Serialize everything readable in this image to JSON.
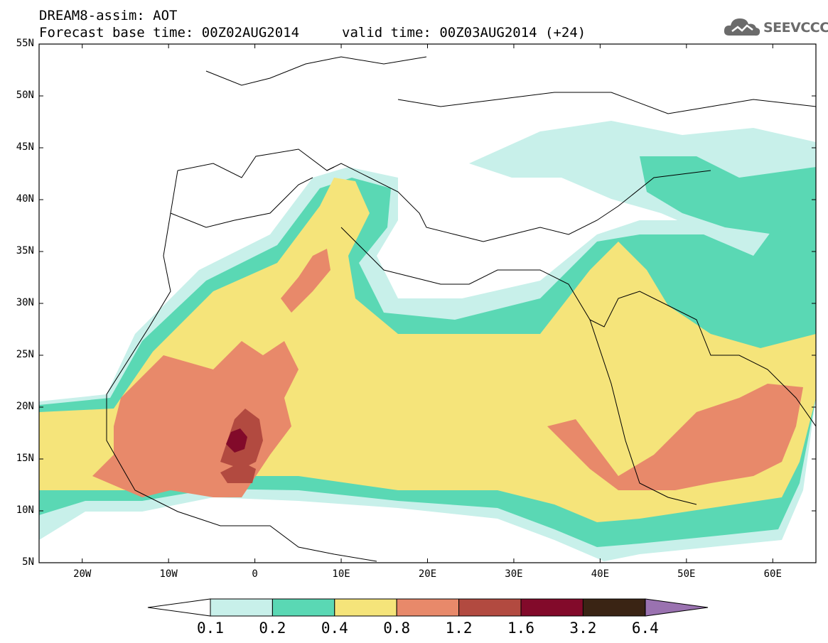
{
  "header": {
    "line1": "DREAM8-assim: AOT",
    "base_time": "Forecast base time: 00Z02AUG2014",
    "valid_time": "valid time: 00Z03AUG2014 (+24)"
  },
  "logo": {
    "text": "SEEVCCC",
    "icon": "cloud-icon",
    "color": "#6b6b6b"
  },
  "map": {
    "lon_range": [
      -25,
      65
    ],
    "lat_range": [
      5,
      55
    ],
    "lat_ticks": [
      {
        "value": 55,
        "label": "55N"
      },
      {
        "value": 50,
        "label": "50N"
      },
      {
        "value": 45,
        "label": "45N"
      },
      {
        "value": 40,
        "label": "40N"
      },
      {
        "value": 35,
        "label": "35N"
      },
      {
        "value": 30,
        "label": "30N"
      },
      {
        "value": 25,
        "label": "25N"
      },
      {
        "value": 20,
        "label": "20N"
      },
      {
        "value": 15,
        "label": "15N"
      },
      {
        "value": 10,
        "label": "10N"
      },
      {
        "value": 5,
        "label": "5N"
      }
    ],
    "lon_ticks": [
      {
        "value": -20,
        "label": "20W"
      },
      {
        "value": -10,
        "label": "10W"
      },
      {
        "value": 0,
        "label": "0"
      },
      {
        "value": 10,
        "label": "10E"
      },
      {
        "value": 20,
        "label": "20E"
      },
      {
        "value": 30,
        "label": "30E"
      },
      {
        "value": 40,
        "label": "40E"
      },
      {
        "value": 50,
        "label": "50E"
      },
      {
        "value": 60,
        "label": "60E"
      }
    ]
  },
  "colorbar": {
    "colors": [
      "#c8f0ea",
      "#5ad8b4",
      "#f5e47a",
      "#e8896a",
      "#b24a40",
      "#820a2a",
      "#3a2414"
    ],
    "under_color": "#ffffff",
    "over_color": "#9a72b0",
    "labels": [
      "0.1",
      "0.2",
      "0.4",
      "0.8",
      "1.2",
      "1.6",
      "3.2",
      "6.4"
    ]
  }
}
